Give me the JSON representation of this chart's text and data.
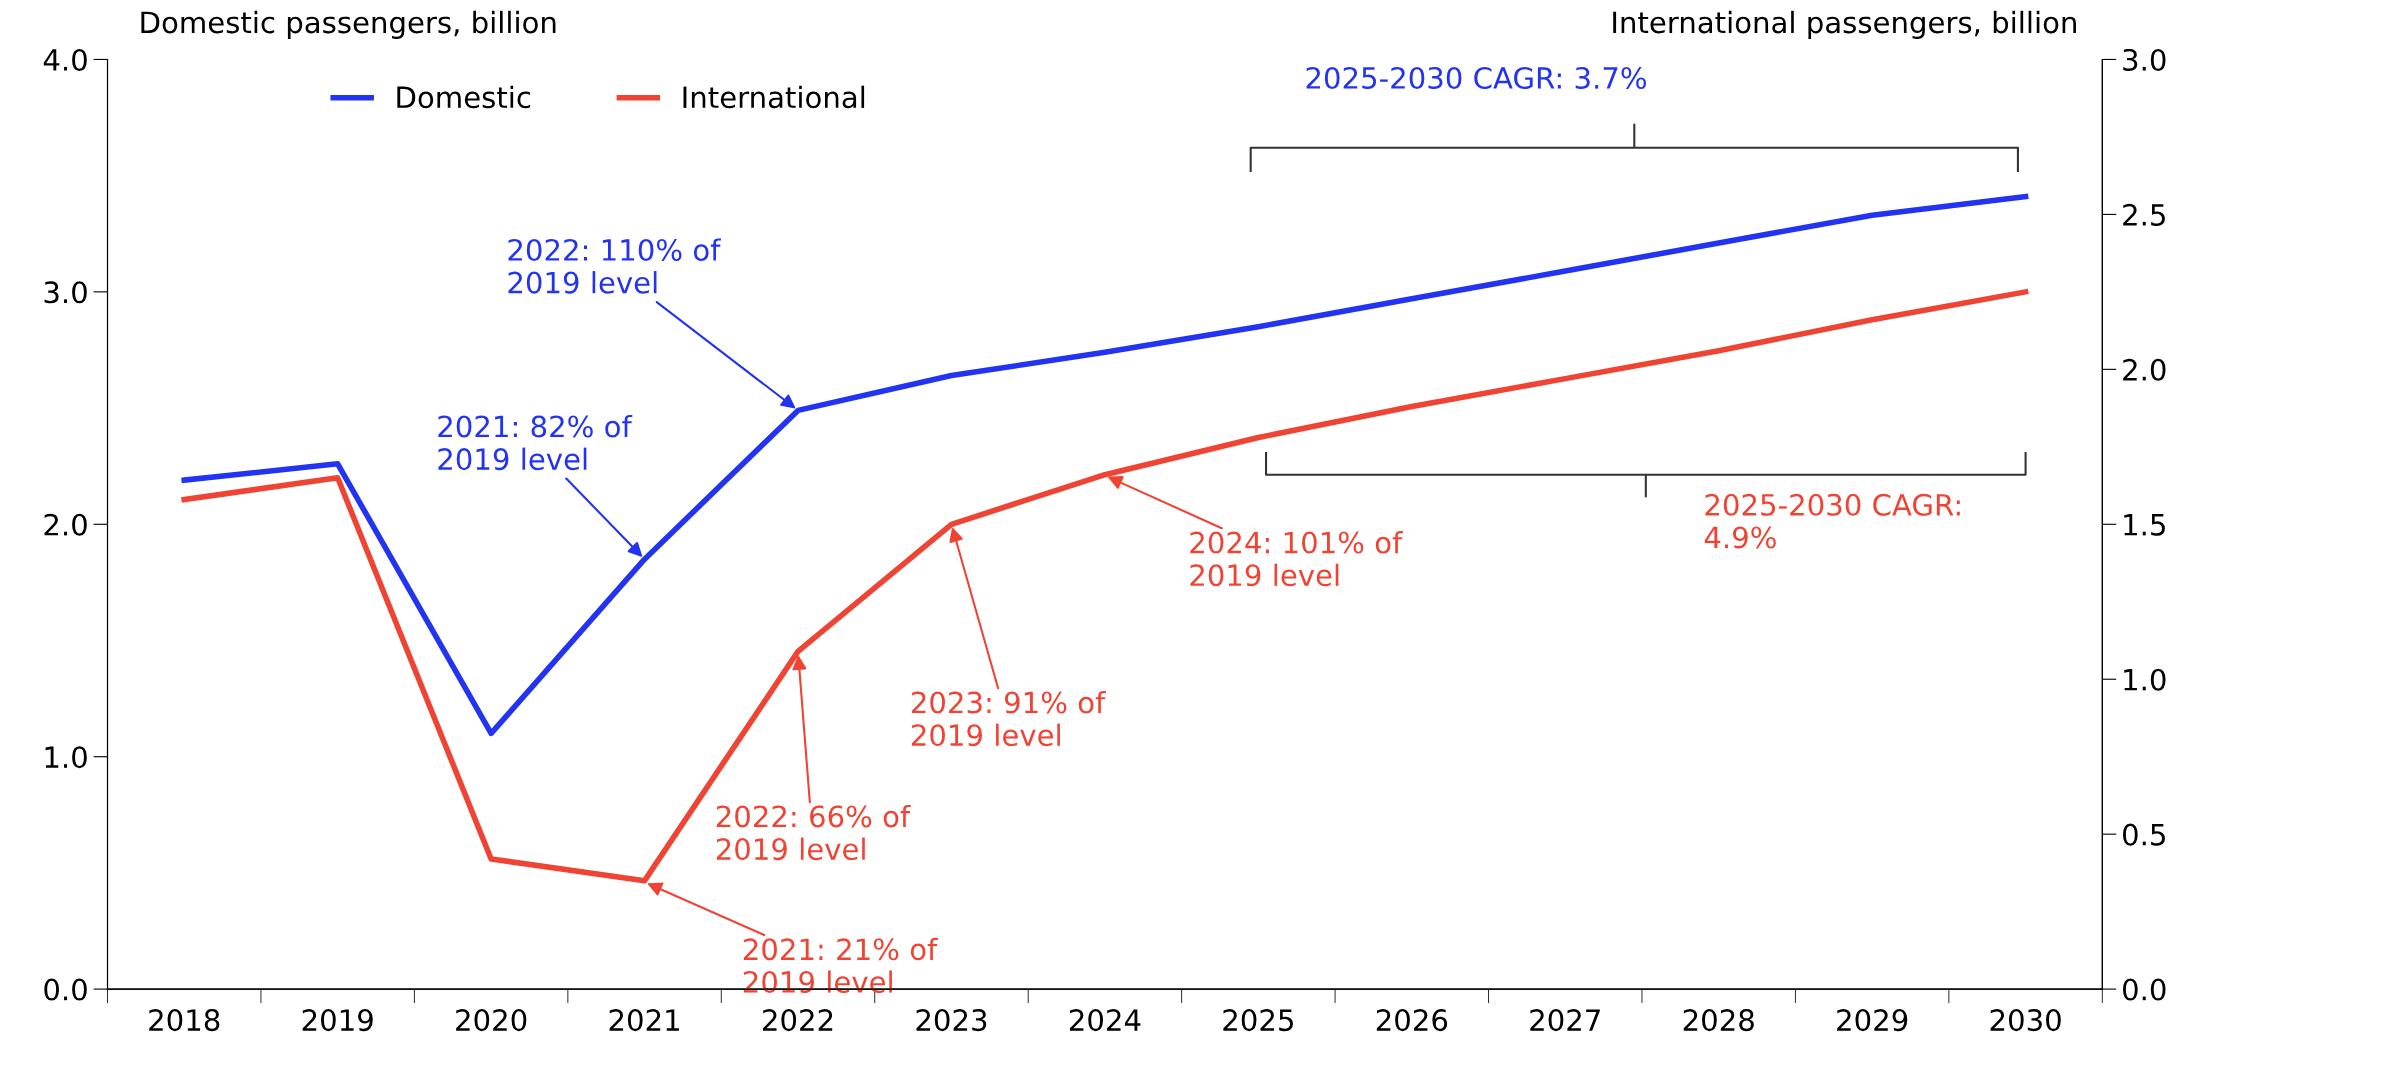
{
  "chart_data": {
    "type": "line",
    "ylabel": "Domestic passengers, billion",
    "y2label": "International passengers, billion",
    "categories": [
      "2018",
      "2019",
      "2020",
      "2021",
      "2022",
      "2023",
      "2024",
      "2025",
      "2026",
      "2027",
      "2028",
      "2029",
      "2030"
    ],
    "series": [
      {
        "name": "Domestic",
        "color": "#2233f2",
        "values": [
          2.19,
          2.26,
          1.1,
          1.85,
          2.49,
          2.64,
          2.74,
          2.85,
          2.97,
          3.09,
          3.21,
          3.33,
          3.41
        ]
      },
      {
        "name": "International",
        "color": "#ef4433",
        "axis": "y2",
        "values": [
          1.58,
          1.65,
          0.42,
          0.35,
          1.09,
          1.5,
          1.66,
          1.78,
          1.88,
          1.97,
          2.06,
          2.16,
          2.25
        ]
      }
    ],
    "ylim": [
      0,
      4
    ],
    "yticks": [
      {
        "value": 0,
        "label": "0.0"
      },
      {
        "value": 1,
        "label": "1.0"
      },
      {
        "value": 2,
        "label": "2.0"
      },
      {
        "value": 3,
        "label": "3.0"
      },
      {
        "value": 4,
        "label": "4.0"
      }
    ],
    "y2lim": [
      0,
      3
    ],
    "y2ticks": [
      {
        "value": 0,
        "label": "0.0"
      },
      {
        "value": 0.5,
        "label": "0.5"
      },
      {
        "value": 1,
        "label": "1.0"
      },
      {
        "value": 1.5,
        "label": "1.5"
      },
      {
        "value": 2,
        "label": "2.0"
      },
      {
        "value": 2.5,
        "label": "2.5"
      },
      {
        "value": 3,
        "label": "3.0"
      }
    ],
    "annotations": [
      {
        "text": "2021: 82% of\n2019 level",
        "x": "2021",
        "y": 1.85
      },
      {
        "text": "2022: 110% of\n2019 level",
        "x": "2022",
        "y": 2.49
      },
      {
        "text": "2021: 21% of\n2019 level",
        "x": "2021",
        "y": 0.46
      },
      {
        "text": "2022: 66% of\n2019 level",
        "x": "2022",
        "y": 1.45
      },
      {
        "text": "2023: 91% of\n2019 level",
        "x": "2023",
        "y": 2.0
      },
      {
        "text": "2024: 101% of\n2019 level",
        "x": "2024",
        "y": 2.21
      },
      "2025-2030 CAGR: 3.7%",
      "2025-2030 CAGR:\n4.9%"
    ],
    "legend": "top left",
    "grid": false,
    "marker": "none",
    "line_style": "solid"
  }
}
